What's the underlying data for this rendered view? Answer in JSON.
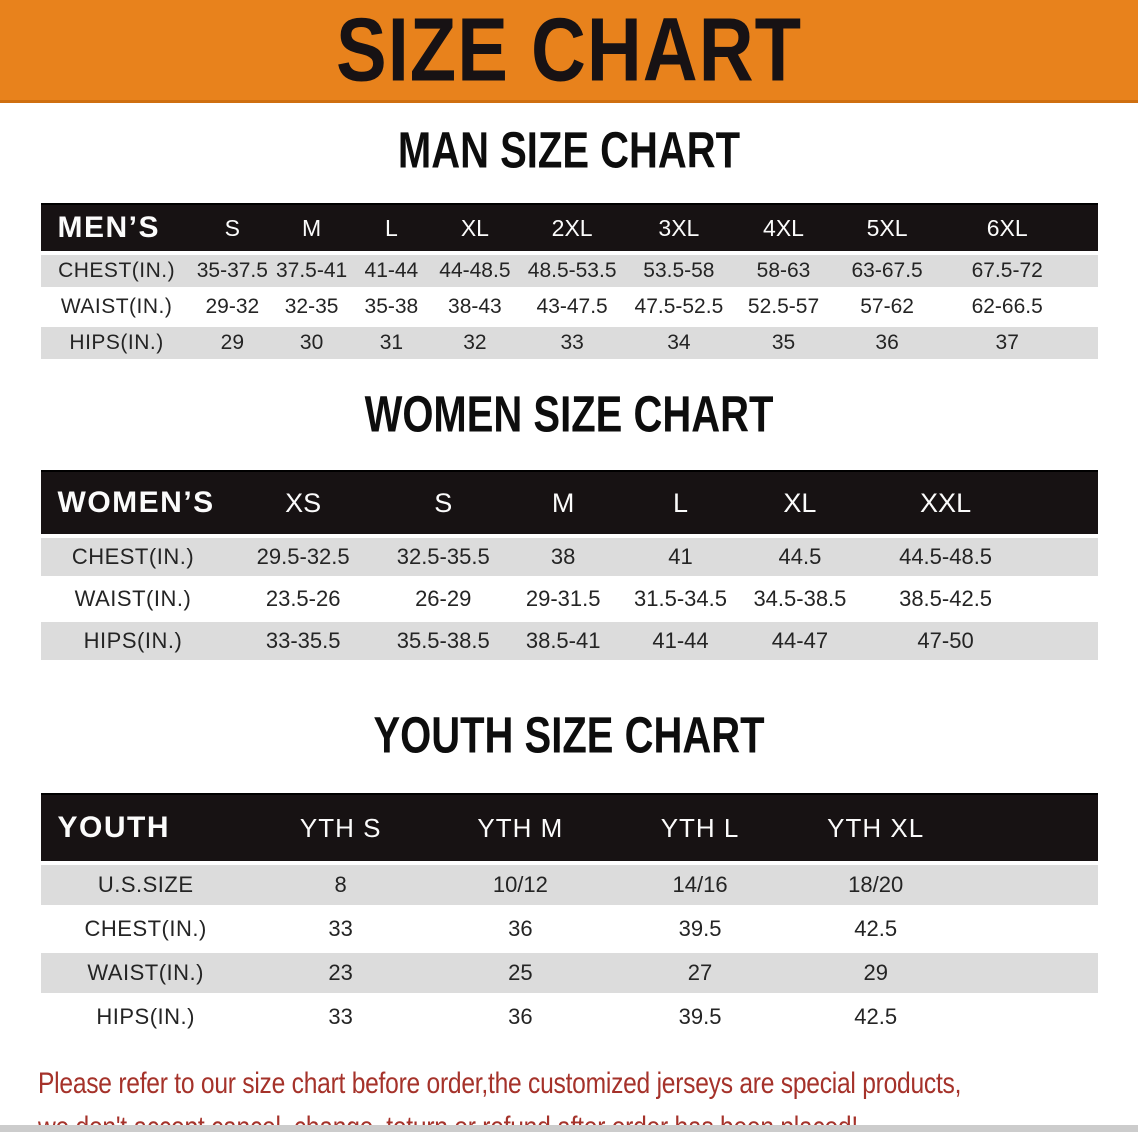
{
  "banner": {
    "title": "SIZE CHART"
  },
  "colors": {
    "accent": "#e8821c",
    "accent_dark": "#cf6f10",
    "header_bg": "#171213",
    "row_stripe": "#dcdcdc",
    "warning_red": "#a5322a"
  },
  "sections": [
    {
      "id": "men",
      "heading": "MAN SIZE CHART",
      "header_label": "MEN’S",
      "columns": [
        "S",
        "M",
        "L",
        "XL",
        "2XL",
        "3XL",
        "4XL",
        "5XL",
        "6XL"
      ],
      "rows": [
        {
          "label": "CHEST(IN.)",
          "values": [
            "35-37.5",
            "37.5-41",
            "41-44",
            "44-48.5",
            "48.5-53.5",
            "53.5-58",
            "58-63",
            "63-67.5",
            "67.5-72"
          ]
        },
        {
          "label": "WAIST(IN.)",
          "values": [
            "29-32",
            "32-35",
            "35-38",
            "38-43",
            "43-47.5",
            "47.5-52.5",
            "52.5-57",
            "57-62",
            "62-66.5"
          ]
        },
        {
          "label": "HIPS(IN.)",
          "values": [
            "29",
            "30",
            "31",
            "32",
            "33",
            "34",
            "35",
            "36",
            "37"
          ]
        }
      ]
    },
    {
      "id": "women",
      "heading": "WOMEN SIZE CHART",
      "header_label": "WOMEN’S",
      "columns": [
        "XS",
        "S",
        "M",
        "L",
        "XL",
        "XXL"
      ],
      "rows": [
        {
          "label": "CHEST(IN.)",
          "values": [
            "29.5-32.5",
            "32.5-35.5",
            "38",
            "41",
            "44.5",
            "44.5-48.5"
          ]
        },
        {
          "label": "WAIST(IN.)",
          "values": [
            "23.5-26",
            "26-29",
            "29-31.5",
            "31.5-34.5",
            "34.5-38.5",
            "38.5-42.5"
          ]
        },
        {
          "label": "HIPS(IN.)",
          "values": [
            "33-35.5",
            "35.5-38.5",
            "38.5-41",
            "41-44",
            "44-47",
            "47-50"
          ]
        }
      ]
    },
    {
      "id": "youth",
      "heading": "YOUTH SIZE CHART",
      "header_label": "YOUTH",
      "columns": [
        "YTH S",
        "YTH M",
        "YTH L",
        "YTH XL"
      ],
      "rows": [
        {
          "label": "U.S.SIZE",
          "values": [
            "8",
            "10/12",
            "14/16",
            "18/20"
          ]
        },
        {
          "label": "CHEST(IN.)",
          "values": [
            "33",
            "36",
            "39.5",
            "42.5"
          ]
        },
        {
          "label": "WAIST(IN.)",
          "values": [
            "23",
            "25",
            "27",
            "29"
          ]
        },
        {
          "label": "HIPS(IN.)",
          "values": [
            "33",
            "36",
            "39.5",
            "42.5"
          ]
        }
      ]
    }
  ],
  "disclaimer": {
    "line1": "Please refer to our size chart before order,the customized jerseys are special products,",
    "line2": "we don't accept cancel, change, teturn or refund after order has been placed!"
  }
}
